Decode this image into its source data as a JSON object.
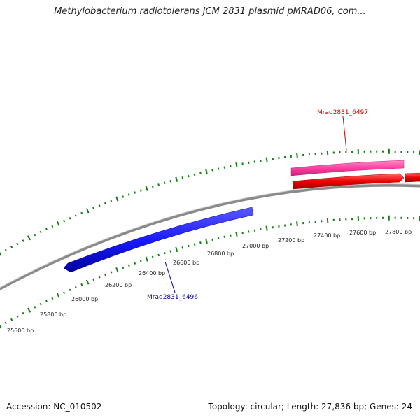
{
  "title": "Methylobacterium radiotolerans JCM 2831 plasmid pMRAD06, com...",
  "footer": {
    "accession": "Accession: NC_010502",
    "summary": "Topology: circular; Length: 27,836 bp; Genes: 24"
  },
  "scale": {
    "tick_labels": [
      "25600 bp",
      "25800 bp",
      "26000 bp",
      "26200 bp",
      "26400 bp",
      "26600 bp",
      "26800 bp",
      "27000 bp",
      "27200 bp",
      "27400 bp",
      "27600 bp",
      "27800 bp"
    ]
  },
  "genes": [
    {
      "name": "Mrad2831_6497",
      "color": "#cc0000",
      "strand": "forward",
      "track": "outer",
      "shape_color": "#ff3fa0"
    },
    {
      "name": "Mrad2831_6496",
      "color": "#000099",
      "strand": "reverse",
      "track": "inner",
      "shape_color": "#1a1aff"
    }
  ],
  "cds": [
    {
      "color": "#ee0000",
      "strand": "forward"
    },
    {
      "color": "#ee0000",
      "strand": "forward"
    }
  ],
  "colors": {
    "backbone": "#8a8a8a",
    "ticks": "#1a7a1a"
  }
}
